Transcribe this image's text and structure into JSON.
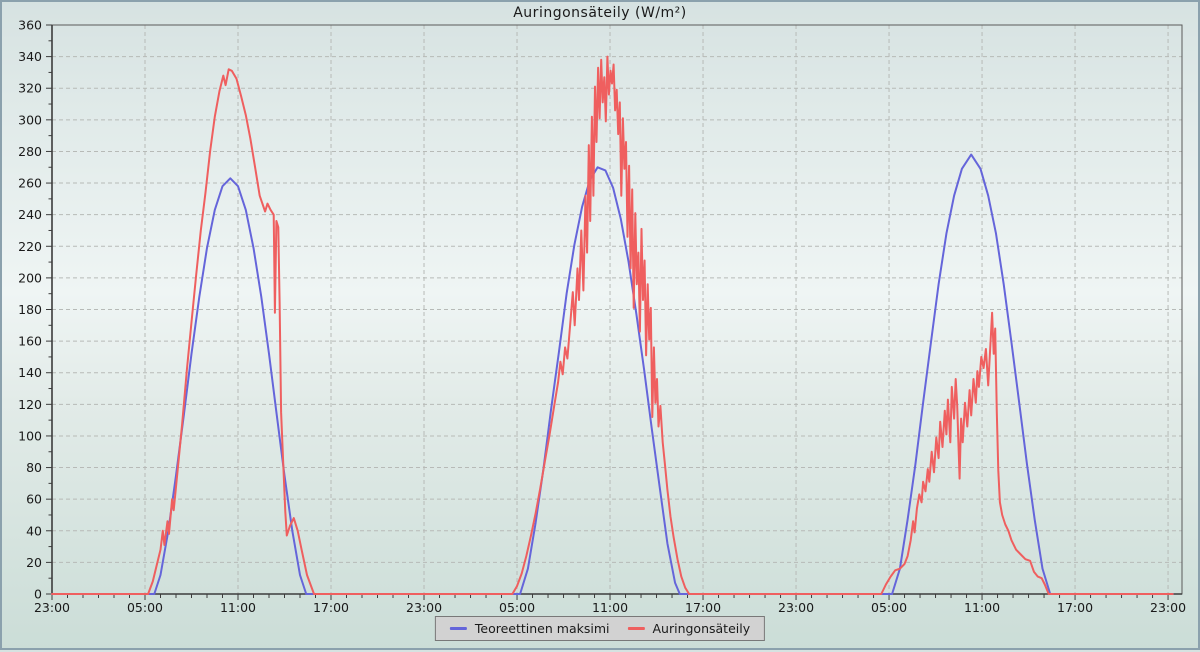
{
  "title": "Auringonsäteily (W/m²)",
  "legend": {
    "position": "bottom-center",
    "items": [
      {
        "label": "Teoreettinen maksimi",
        "color": "#6565da"
      },
      {
        "label": "Auringonsäteily",
        "color": "#ef5f5f"
      }
    ]
  },
  "colors": {
    "grid": "#b7bab7",
    "axis": "#3c3c3c",
    "frame": "#5a5a5a",
    "text": "#1a1a1a",
    "legend_bg": "#d2d2d2",
    "legend_border": "#787878"
  },
  "chart_data": {
    "type": "line",
    "title": "Auringonsäteily (W/m²)",
    "xlabel": "",
    "ylabel": "",
    "grid": "dashed",
    "legend_position": "bottom",
    "x_axis": {
      "unit": "time-of-day over 3 days",
      "major_tick_hours": 6,
      "minor_tick_hours": 1,
      "total_hours": 72.9,
      "tick_labels": [
        "23:00",
        "05:00",
        "11:00",
        "17:00",
        "23:00",
        "05:00",
        "11:00",
        "17:00",
        "23:00",
        "05:00",
        "11:00",
        "17:00",
        "23:00"
      ]
    },
    "y_axis": {
      "min": 0,
      "max": 360,
      "tick_step": 20,
      "minor_step": 10
    },
    "series": [
      {
        "name": "Teoreettinen maksimi",
        "color": "#6565da",
        "points": [
          [
            0,
            0
          ],
          [
            6.6,
            0
          ],
          [
            7.0,
            12
          ],
          [
            7.5,
            40
          ],
          [
            8.0,
            75
          ],
          [
            8.5,
            113
          ],
          [
            9.0,
            152
          ],
          [
            9.5,
            188
          ],
          [
            10.0,
            219
          ],
          [
            10.5,
            243
          ],
          [
            11.0,
            258
          ],
          [
            11.5,
            263
          ],
          [
            12.0,
            258
          ],
          [
            12.5,
            243
          ],
          [
            13.0,
            219
          ],
          [
            13.5,
            188
          ],
          [
            14.0,
            152
          ],
          [
            14.5,
            113
          ],
          [
            15.0,
            75
          ],
          [
            15.5,
            40
          ],
          [
            16.0,
            12
          ],
          [
            16.4,
            0
          ],
          [
            30.2,
            0
          ],
          [
            30.7,
            16
          ],
          [
            31.2,
            45
          ],
          [
            31.7,
            79
          ],
          [
            32.2,
            117
          ],
          [
            32.7,
            153
          ],
          [
            33.2,
            190
          ],
          [
            33.7,
            221
          ],
          [
            34.2,
            245
          ],
          [
            34.7,
            262
          ],
          [
            35.2,
            270
          ],
          [
            35.7,
            268
          ],
          [
            36.2,
            257
          ],
          [
            36.7,
            237
          ],
          [
            37.2,
            210
          ],
          [
            37.7,
            177
          ],
          [
            38.2,
            142
          ],
          [
            38.7,
            104
          ],
          [
            39.2,
            68
          ],
          [
            39.7,
            32
          ],
          [
            40.2,
            7
          ],
          [
            40.5,
            0
          ],
          [
            54.2,
            0
          ],
          [
            54.7,
            16
          ],
          [
            55.2,
            47
          ],
          [
            55.7,
            82
          ],
          [
            56.2,
            121
          ],
          [
            56.7,
            159
          ],
          [
            57.2,
            196
          ],
          [
            57.7,
            228
          ],
          [
            58.2,
            252
          ],
          [
            58.7,
            269
          ],
          [
            59.3,
            278
          ],
          [
            59.9,
            269
          ],
          [
            60.4,
            252
          ],
          [
            60.9,
            228
          ],
          [
            61.4,
            196
          ],
          [
            61.9,
            159
          ],
          [
            62.4,
            121
          ],
          [
            62.9,
            82
          ],
          [
            63.4,
            47
          ],
          [
            63.9,
            16
          ],
          [
            64.4,
            0
          ],
          [
            72.3,
            0
          ]
        ]
      },
      {
        "name": "Auringonsäteily",
        "color": "#ef5f5f",
        "points": [
          [
            0,
            0
          ],
          [
            6.2,
            0
          ],
          [
            6.5,
            8
          ],
          [
            6.8,
            20
          ],
          [
            7.0,
            28
          ],
          [
            7.15,
            40
          ],
          [
            7.25,
            31
          ],
          [
            7.45,
            46
          ],
          [
            7.55,
            38
          ],
          [
            7.75,
            60
          ],
          [
            7.85,
            53
          ],
          [
            8.1,
            78
          ],
          [
            8.4,
            108
          ],
          [
            8.7,
            142
          ],
          [
            9.0,
            172
          ],
          [
            9.3,
            202
          ],
          [
            9.6,
            230
          ],
          [
            9.9,
            254
          ],
          [
            10.2,
            280
          ],
          [
            10.5,
            302
          ],
          [
            10.8,
            318
          ],
          [
            11.05,
            328
          ],
          [
            11.2,
            322
          ],
          [
            11.4,
            332
          ],
          [
            11.6,
            331
          ],
          [
            11.9,
            326
          ],
          [
            12.2,
            315
          ],
          [
            12.5,
            303
          ],
          [
            12.8,
            288
          ],
          [
            13.1,
            270
          ],
          [
            13.4,
            252
          ],
          [
            13.75,
            242
          ],
          [
            13.9,
            247
          ],
          [
            14.1,
            243
          ],
          [
            14.3,
            240
          ],
          [
            14.38,
            178
          ],
          [
            14.48,
            236
          ],
          [
            14.6,
            232
          ],
          [
            14.68,
            185
          ],
          [
            14.78,
            115
          ],
          [
            14.9,
            86
          ],
          [
            15.05,
            52
          ],
          [
            15.15,
            37
          ],
          [
            15.35,
            43
          ],
          [
            15.6,
            48
          ],
          [
            15.85,
            40
          ],
          [
            16.1,
            28
          ],
          [
            16.45,
            12
          ],
          [
            16.9,
            0
          ],
          [
            29.7,
            0
          ],
          [
            30.0,
            5
          ],
          [
            30.3,
            13
          ],
          [
            30.6,
            24
          ],
          [
            30.9,
            37
          ],
          [
            31.2,
            51
          ],
          [
            31.5,
            67
          ],
          [
            31.8,
            84
          ],
          [
            32.1,
            101
          ],
          [
            32.4,
            119
          ],
          [
            32.65,
            134
          ],
          [
            32.8,
            147
          ],
          [
            32.95,
            139
          ],
          [
            33.1,
            156
          ],
          [
            33.25,
            149
          ],
          [
            33.45,
            173
          ],
          [
            33.6,
            191
          ],
          [
            33.72,
            170
          ],
          [
            33.9,
            206
          ],
          [
            34.0,
            186
          ],
          [
            34.15,
            230
          ],
          [
            34.28,
            192
          ],
          [
            34.42,
            252
          ],
          [
            34.52,
            216
          ],
          [
            34.63,
            284
          ],
          [
            34.72,
            236
          ],
          [
            34.83,
            302
          ],
          [
            34.93,
            252
          ],
          [
            35.03,
            321
          ],
          [
            35.13,
            286
          ],
          [
            35.23,
            333
          ],
          [
            35.33,
            301
          ],
          [
            35.43,
            338
          ],
          [
            35.53,
            311
          ],
          [
            35.63,
            327
          ],
          [
            35.73,
            299
          ],
          [
            35.83,
            340
          ],
          [
            35.93,
            316
          ],
          [
            36.03,
            331
          ],
          [
            36.13,
            323
          ],
          [
            36.23,
            335
          ],
          [
            36.33,
            306
          ],
          [
            36.43,
            319
          ],
          [
            36.53,
            291
          ],
          [
            36.63,
            311
          ],
          [
            36.73,
            252
          ],
          [
            36.83,
            301
          ],
          [
            36.93,
            269
          ],
          [
            37.03,
            286
          ],
          [
            37.13,
            226
          ],
          [
            37.23,
            271
          ],
          [
            37.33,
            206
          ],
          [
            37.43,
            256
          ],
          [
            37.53,
            181
          ],
          [
            37.63,
            241
          ],
          [
            37.73,
            196
          ],
          [
            37.83,
            216
          ],
          [
            37.93,
            166
          ],
          [
            38.03,
            231
          ],
          [
            38.13,
            186
          ],
          [
            38.23,
            211
          ],
          [
            38.33,
            151
          ],
          [
            38.43,
            196
          ],
          [
            38.53,
            161
          ],
          [
            38.63,
            181
          ],
          [
            38.73,
            112
          ],
          [
            38.83,
            156
          ],
          [
            38.93,
            121
          ],
          [
            39.03,
            136
          ],
          [
            39.13,
            106
          ],
          [
            39.25,
            119
          ],
          [
            39.4,
            96
          ],
          [
            39.55,
            81
          ],
          [
            39.7,
            66
          ],
          [
            39.9,
            49
          ],
          [
            40.1,
            36
          ],
          [
            40.35,
            22
          ],
          [
            40.6,
            11
          ],
          [
            40.85,
            4
          ],
          [
            41.1,
            0
          ],
          [
            53.5,
            0
          ],
          [
            53.8,
            6
          ],
          [
            54.1,
            11
          ],
          [
            54.4,
            15
          ],
          [
            54.7,
            16
          ],
          [
            55.0,
            19
          ],
          [
            55.2,
            24
          ],
          [
            55.4,
            34
          ],
          [
            55.55,
            46
          ],
          [
            55.65,
            39
          ],
          [
            55.8,
            54
          ],
          [
            55.95,
            63
          ],
          [
            56.1,
            58
          ],
          [
            56.2,
            71
          ],
          [
            56.35,
            65
          ],
          [
            56.5,
            79
          ],
          [
            56.6,
            71
          ],
          [
            56.75,
            90
          ],
          [
            56.9,
            77
          ],
          [
            57.05,
            99
          ],
          [
            57.2,
            86
          ],
          [
            57.3,
            109
          ],
          [
            57.45,
            93
          ],
          [
            57.6,
            116
          ],
          [
            57.7,
            101
          ],
          [
            57.8,
            123
          ],
          [
            57.95,
            96
          ],
          [
            58.05,
            131
          ],
          [
            58.2,
            111
          ],
          [
            58.3,
            136
          ],
          [
            58.4,
            119
          ],
          [
            58.55,
            73
          ],
          [
            58.65,
            111
          ],
          [
            58.75,
            96
          ],
          [
            58.9,
            121
          ],
          [
            59.05,
            106
          ],
          [
            59.2,
            129
          ],
          [
            59.3,
            113
          ],
          [
            59.45,
            136
          ],
          [
            59.6,
            121
          ],
          [
            59.7,
            141
          ],
          [
            59.8,
            131
          ],
          [
            59.95,
            150
          ],
          [
            60.1,
            143
          ],
          [
            60.25,
            155
          ],
          [
            60.4,
            132
          ],
          [
            60.55,
            160
          ],
          [
            60.65,
            178
          ],
          [
            60.75,
            152
          ],
          [
            60.85,
            168
          ],
          [
            60.95,
            115
          ],
          [
            61.05,
            78
          ],
          [
            61.15,
            58
          ],
          [
            61.3,
            50
          ],
          [
            61.5,
            44
          ],
          [
            61.7,
            40
          ],
          [
            61.9,
            34
          ],
          [
            62.2,
            28
          ],
          [
            62.5,
            25
          ],
          [
            62.8,
            22
          ],
          [
            63.1,
            21
          ],
          [
            63.35,
            14
          ],
          [
            63.6,
            11
          ],
          [
            63.85,
            10
          ],
          [
            64.05,
            6
          ],
          [
            64.3,
            0
          ],
          [
            72.3,
            0
          ]
        ]
      }
    ]
  }
}
